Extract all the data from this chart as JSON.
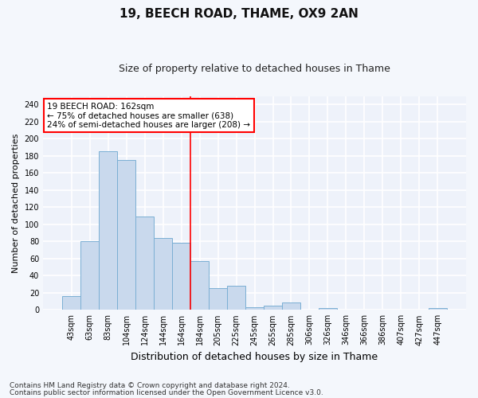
{
  "title1": "19, BEECH ROAD, THAME, OX9 2AN",
  "title2": "Size of property relative to detached houses in Thame",
  "xlabel": "Distribution of detached houses by size in Thame",
  "ylabel": "Number of detached properties",
  "categories": [
    "43sqm",
    "63sqm",
    "83sqm",
    "104sqm",
    "124sqm",
    "144sqm",
    "164sqm",
    "184sqm",
    "205sqm",
    "225sqm",
    "245sqm",
    "265sqm",
    "285sqm",
    "306sqm",
    "326sqm",
    "346sqm",
    "366sqm",
    "386sqm",
    "407sqm",
    "427sqm",
    "447sqm"
  ],
  "values": [
    16,
    80,
    185,
    175,
    109,
    84,
    78,
    57,
    25,
    28,
    3,
    5,
    9,
    0,
    2,
    0,
    0,
    0,
    0,
    0,
    2
  ],
  "bar_color": "#c9d9ed",
  "bar_edge_color": "#7bafd4",
  "annotation_text": "19 BEECH ROAD: 162sqm\n← 75% of detached houses are smaller (638)\n24% of semi-detached houses are larger (208) →",
  "annotation_box_color": "white",
  "annotation_box_edgecolor": "red",
  "vline_x": 6.5,
  "ylim": [
    0,
    250
  ],
  "yticks": [
    0,
    20,
    40,
    60,
    80,
    100,
    120,
    140,
    160,
    180,
    200,
    220,
    240
  ],
  "footer1": "Contains HM Land Registry data © Crown copyright and database right 2024.",
  "footer2": "Contains public sector information licensed under the Open Government Licence v3.0.",
  "bg_color": "#f4f7fc",
  "plot_bg_color": "#eef2fa",
  "grid_color": "white",
  "title1_fontsize": 11,
  "title2_fontsize": 9,
  "xlabel_fontsize": 9,
  "ylabel_fontsize": 8,
  "tick_fontsize": 7,
  "footer_fontsize": 6.5,
  "annotation_fontsize": 7.5
}
